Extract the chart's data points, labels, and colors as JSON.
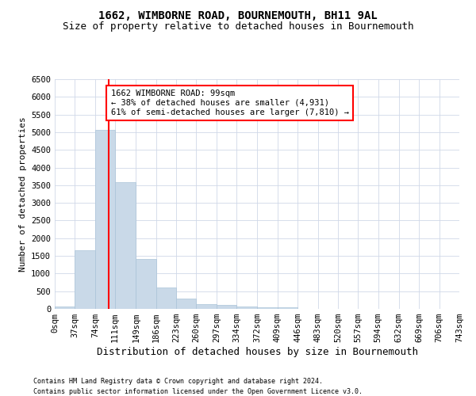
{
  "title": "1662, WIMBORNE ROAD, BOURNEMOUTH, BH11 9AL",
  "subtitle": "Size of property relative to detached houses in Bournemouth",
  "xlabel": "Distribution of detached houses by size in Bournemouth",
  "ylabel": "Number of detached properties",
  "bar_values": [
    75,
    1650,
    5060,
    3590,
    1410,
    610,
    290,
    145,
    105,
    75,
    55,
    55,
    0,
    0,
    0,
    0,
    0,
    0,
    0,
    0
  ],
  "bin_edges": [
    0,
    37,
    74,
    111,
    149,
    186,
    223,
    260,
    297,
    334,
    372,
    409,
    446,
    483,
    520,
    557,
    594,
    632,
    669,
    706,
    743
  ],
  "tick_labels": [
    "0sqm",
    "37sqm",
    "74sqm",
    "111sqm",
    "149sqm",
    "186sqm",
    "223sqm",
    "260sqm",
    "297sqm",
    "334sqm",
    "372sqm",
    "409sqm",
    "446sqm",
    "483sqm",
    "520sqm",
    "557sqm",
    "594sqm",
    "632sqm",
    "669sqm",
    "706sqm",
    "743sqm"
  ],
  "bar_color": "#c9d9e8",
  "bar_edge_color": "#aac4d8",
  "grid_color": "#d0d8e8",
  "vline_x": 99,
  "vline_color": "red",
  "annotation_text": "1662 WIMBORNE ROAD: 99sqm\n← 38% of detached houses are smaller (4,931)\n61% of semi-detached houses are larger (7,810) →",
  "annotation_box_color": "red",
  "annotation_fill": "white",
  "ylim": [
    0,
    6500
  ],
  "footnote1": "Contains HM Land Registry data © Crown copyright and database right 2024.",
  "footnote2": "Contains public sector information licensed under the Open Government Licence v3.0.",
  "title_fontsize": 10,
  "subtitle_fontsize": 9,
  "xlabel_fontsize": 9,
  "ylabel_fontsize": 8,
  "tick_fontsize": 7.5,
  "annot_fontsize": 7.5,
  "footnote_fontsize": 6
}
